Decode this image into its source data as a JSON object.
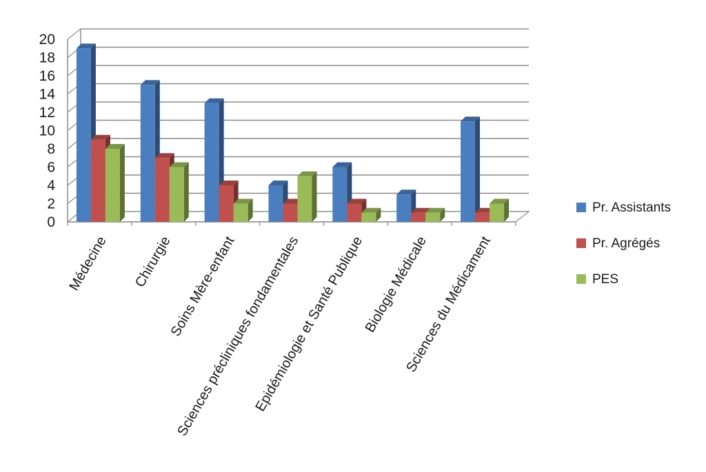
{
  "chart_data": {
    "type": "bar",
    "title": "",
    "xlabel": "",
    "ylabel": "",
    "ylim": [
      0,
      20
    ],
    "yticks": [
      0,
      2,
      4,
      6,
      8,
      10,
      12,
      14,
      16,
      18,
      20
    ],
    "grid": true,
    "legend_position": "right",
    "categories": [
      "Médecine",
      "Chirurgie",
      "Soins Mère-enfant",
      "Sciences précliniques fondamentales",
      "Epidémiologie et Santé Publique",
      "Biologie Médicale",
      "Sciences du Médicament"
    ],
    "series": [
      {
        "name": "Pr. Assistants",
        "color": "#4a7ebf",
        "values": [
          19,
          15,
          13,
          4,
          6,
          3,
          11
        ]
      },
      {
        "name": "Pr. Agrégés",
        "color": "#c0504d",
        "values": [
          9,
          7,
          4,
          2,
          2,
          1,
          1
        ]
      },
      {
        "name": "PES",
        "color": "#9bbb59",
        "values": [
          8,
          6,
          2,
          5,
          1,
          1,
          2
        ]
      }
    ]
  }
}
